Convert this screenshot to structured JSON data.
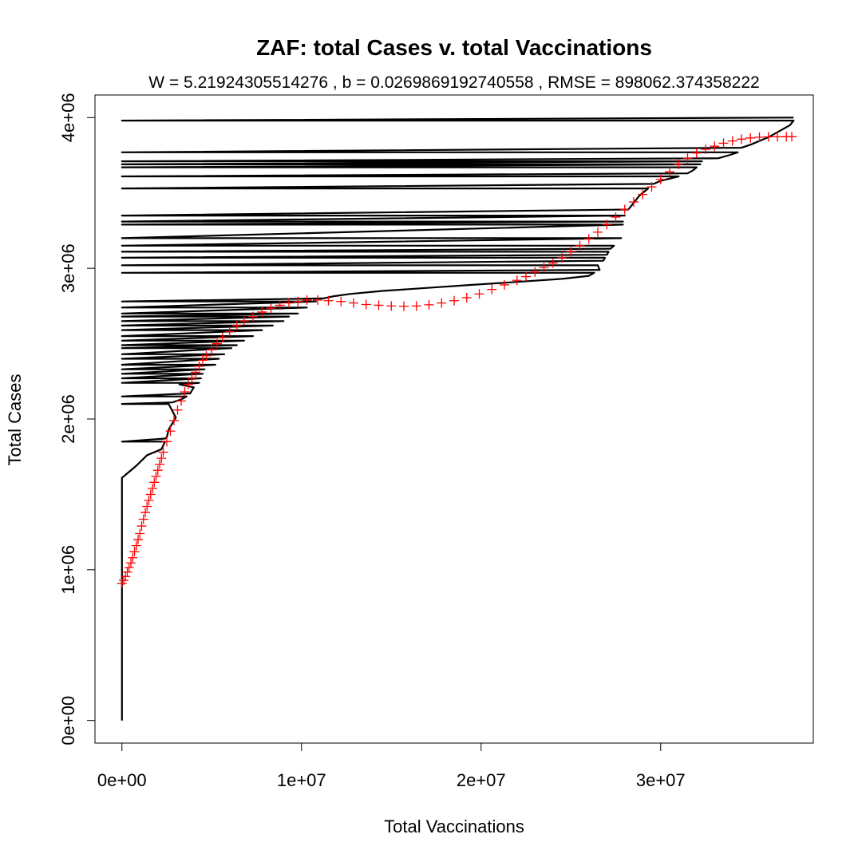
{
  "chart_data": {
    "type": "line",
    "title": "ZAF: total Cases v. total Vaccinations",
    "subtitle": "W = 5.21924305514276 , b = 0.0269869192740558 , RMSE = 898062.374358222",
    "xlabel": "Total Vaccinations",
    "ylabel": "Total Cases",
    "xlim": [
      -1500000,
      38500000
    ],
    "ylim": [
      -150000,
      4150000
    ],
    "x_ticks": [
      0,
      10000000,
      20000000,
      30000000
    ],
    "x_tick_labels": [
      "0e+00",
      "1e+07",
      "2e+07",
      "3e+07"
    ],
    "y_ticks": [
      0,
      1000000,
      2000000,
      3000000,
      4000000
    ],
    "y_tick_labels": [
      "0e+00",
      "1e+06",
      "2e+06",
      "3e+06",
      "4e+06"
    ],
    "grid": false,
    "legend": "none",
    "colors": {
      "actual": "#000000",
      "fitted": "#ff0000",
      "frame": "#000000"
    },
    "series": [
      {
        "style": "line",
        "x": [
          0,
          0,
          0,
          0,
          100000,
          400000,
          800000,
          1400000,
          2200000,
          2400000,
          0,
          2400000,
          2500000,
          2600000,
          3000000,
          2600000,
          0,
          2800000,
          3300000,
          3600000,
          0,
          3800000,
          4000000,
          3200000,
          4300000,
          0,
          4400000,
          0,
          4500000,
          0,
          4600000,
          0,
          5200000,
          0,
          5400000,
          0,
          5700000,
          0,
          6100000,
          0,
          6400000,
          0,
          6800000,
          0,
          7300000,
          0,
          7800000,
          0,
          8400000,
          0,
          9000000,
          0,
          9300000,
          0,
          9800000,
          0,
          10300000,
          0,
          10800000,
          0,
          11200000,
          11800000,
          12700000,
          14500000,
          17000000,
          19500000,
          22000000,
          24500000,
          26000000,
          26300000,
          0,
          26600000,
          26500000,
          0,
          26800000,
          26900000,
          0,
          27000000,
          27100000,
          0,
          27200000,
          27400000,
          0,
          27800000,
          0,
          27900000,
          0,
          27900000,
          0,
          28000000,
          0,
          28200000,
          28800000,
          29300000,
          0,
          29600000,
          30000000,
          31000000,
          0,
          31500000,
          31800000,
          32000000,
          0,
          32200000,
          0,
          32300000,
          0,
          33200000,
          33800000,
          34300000,
          0,
          34500000,
          35000000,
          36000000,
          37200000,
          37400000,
          0,
          37400000
        ],
        "y": [
          0,
          1500000,
          1560000,
          1610000,
          1620000,
          1650000,
          1690000,
          1760000,
          1800000,
          1850000,
          1850000,
          1870000,
          1880000,
          1930000,
          2010000,
          2100000,
          2100000,
          2110000,
          2130000,
          2150000,
          2150000,
          2170000,
          2210000,
          2230000,
          2240000,
          2240000,
          2270000,
          2270000,
          2300000,
          2300000,
          2330000,
          2330000,
          2360000,
          2360000,
          2400000,
          2400000,
          2430000,
          2430000,
          2470000,
          2470000,
          2490000,
          2490000,
          2520000,
          2520000,
          2550000,
          2550000,
          2590000,
          2590000,
          2620000,
          2620000,
          2650000,
          2650000,
          2680000,
          2680000,
          2700000,
          2700000,
          2740000,
          2740000,
          2780000,
          2780000,
          2800000,
          2815000,
          2830000,
          2850000,
          2870000,
          2890000,
          2910000,
          2930000,
          2950000,
          2970000,
          2970000,
          2990000,
          3020000,
          3020000,
          3050000,
          3070000,
          3070000,
          3090000,
          3110000,
          3110000,
          3130000,
          3150000,
          3150000,
          3200000,
          3200000,
          3290000,
          3290000,
          3310000,
          3310000,
          3350000,
          3350000,
          3390000,
          3480000,
          3530000,
          3530000,
          3560000,
          3580000,
          3610000,
          3610000,
          3630000,
          3650000,
          3670000,
          3670000,
          3690000,
          3690000,
          3710000,
          3710000,
          3730000,
          3750000,
          3770000,
          3770000,
          3800000,
          3820000,
          3870000,
          3950000,
          3980000,
          3980000,
          4000000
        ]
      },
      {
        "style": "points",
        "marker": "+",
        "x": [
          0,
          100000,
          200000,
          300000,
          400000,
          500000,
          600000,
          700000,
          800000,
          900000,
          1000000,
          1100000,
          1200000,
          1300000,
          1400000,
          1500000,
          1600000,
          1700000,
          1800000,
          1900000,
          2000000,
          2100000,
          2200000,
          2300000,
          2500000,
          2700000,
          2900000,
          3100000,
          3300000,
          3500000,
          3700000,
          3900000,
          4100000,
          4300000,
          4500000,
          4700000,
          5000000,
          5300000,
          5600000,
          6000000,
          6400000,
          6800000,
          7300000,
          7800000,
          8300000,
          8800000,
          9300000,
          9800000,
          10300000,
          10900000,
          11500000,
          12200000,
          12900000,
          13600000,
          14300000,
          15000000,
          15700000,
          16400000,
          17100000,
          17800000,
          18500000,
          19200000,
          19900000,
          20600000,
          21300000,
          22000000,
          22500000,
          23000000,
          23500000,
          24000000,
          24500000,
          25000000,
          25500000,
          26000000,
          26500000,
          27000000,
          27500000,
          28000000,
          28500000,
          29000000,
          29500000,
          30000000,
          30500000,
          31000000,
          31500000,
          32000000,
          32500000,
          33000000,
          33500000,
          34000000,
          34500000,
          35000000,
          35500000,
          36000000,
          36500000,
          37000000,
          37300000
        ],
        "y": [
          910000,
          930000,
          955000,
          985000,
          1015000,
          1045000,
          1080000,
          1120000,
          1160000,
          1200000,
          1240000,
          1290000,
          1335000,
          1380000,
          1420000,
          1460000,
          1500000,
          1540000,
          1580000,
          1620000,
          1660000,
          1700000,
          1740000,
          1780000,
          1850000,
          1920000,
          1990000,
          2060000,
          2120000,
          2180000,
          2230000,
          2270000,
          2310000,
          2350000,
          2390000,
          2420000,
          2460000,
          2500000,
          2540000,
          2580000,
          2620000,
          2650000,
          2680000,
          2710000,
          2735000,
          2755000,
          2770000,
          2780000,
          2790000,
          2790000,
          2785000,
          2780000,
          2770000,
          2760000,
          2755000,
          2750000,
          2748000,
          2750000,
          2758000,
          2770000,
          2785000,
          2805000,
          2830000,
          2860000,
          2890000,
          2920000,
          2945000,
          2975000,
          3005000,
          3035000,
          3070000,
          3110000,
          3150000,
          3195000,
          3240000,
          3290000,
          3340000,
          3390000,
          3440000,
          3490000,
          3540000,
          3590000,
          3640000,
          3690000,
          3730000,
          3765000,
          3790000,
          3810000,
          3830000,
          3845000,
          3857000,
          3865000,
          3870000,
          3872000,
          3873000,
          3873000,
          3873000
        ]
      }
    ]
  }
}
